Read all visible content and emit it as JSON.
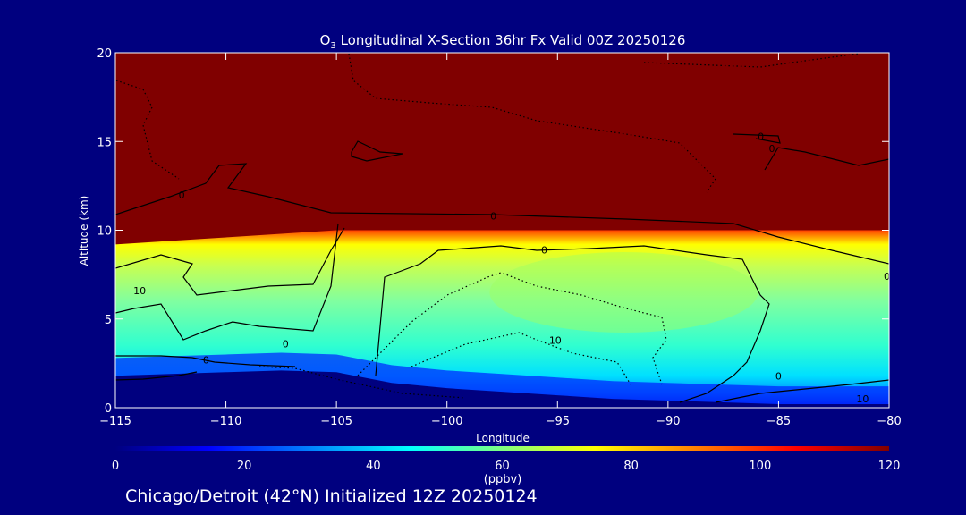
{
  "chart_data": {
    "type": "heatmap",
    "title_species": "O",
    "title_subscript": "3",
    "title_rest": " Longitudinal X-Section 36hr  Fx Valid 00Z 20250126",
    "xlabel": "Longitude",
    "ylabel": "Altitude (km)",
    "xlim": [
      -115,
      -80
    ],
    "ylim": [
      0,
      20
    ],
    "x_ticks": [
      -115,
      -110,
      -105,
      -100,
      -95,
      -90,
      -85,
      -80
    ],
    "x_tick_labels": [
      "−115",
      "−110",
      "−105",
      "−100",
      "−95",
      "−90",
      "−85",
      "−80"
    ],
    "y_ticks": [
      0,
      5,
      10,
      15,
      20
    ],
    "y_tick_labels": [
      "0",
      "5",
      "10",
      "15",
      "20"
    ],
    "colorbar": {
      "label": "(ppbv)",
      "range": [
        0,
        120
      ],
      "ticks": [
        0,
        20,
        40,
        60,
        80,
        100,
        120
      ],
      "tick_labels": [
        "0",
        "20",
        "40",
        "60",
        "80",
        "100",
        "120"
      ],
      "colors": [
        "#00007f",
        "#0000ff",
        "#0080ff",
        "#00ffff",
        "#80ff80",
        "#ffff00",
        "#ff8000",
        "#ff0000",
        "#800000"
      ]
    },
    "tropopause_altitude_km": [
      9.2,
      9.4,
      9.6,
      9.8,
      10.0,
      10.0,
      10.0,
      10.0,
      10.0,
      10.0,
      10.0,
      10.0,
      10.0,
      10.0,
      10.0
    ],
    "tropopause_longitude": [
      -115,
      -112.5,
      -110,
      -107.5,
      -105,
      -102.5,
      -100,
      -97.5,
      -95,
      -92.5,
      -90,
      -87.5,
      -85,
      -82.5,
      -80
    ],
    "stratosphere_ozone_ppbv": 120,
    "troposphere_ozone_ppbv_range": [
      40,
      60
    ],
    "surface_ozone_ppbv_range": [
      0,
      30
    ],
    "contour_labels": [
      {
        "text": "0",
        "lon": -112.0,
        "alt": 12.0
      },
      {
        "text": "0",
        "lon": -97.9,
        "alt": 10.8
      },
      {
        "text": "0",
        "lon": -85.8,
        "alt": 15.3
      },
      {
        "text": "0",
        "lon": -85.3,
        "alt": 14.6
      },
      {
        "text": "0",
        "lon": -95.6,
        "alt": 8.9
      },
      {
        "text": "10",
        "lon": -113.9,
        "alt": 6.6
      },
      {
        "text": "0",
        "lon": -107.3,
        "alt": 3.6
      },
      {
        "text": "0",
        "lon": -110.9,
        "alt": 2.7
      },
      {
        "text": "10",
        "lon": -95.1,
        "alt": 3.8
      },
      {
        "text": "0",
        "lon": -85.0,
        "alt": 1.8
      },
      {
        "text": "10",
        "lon": -81.2,
        "alt": 0.5
      },
      {
        "text": "0",
        "lon": -80.1,
        "alt": 7.4
      }
    ],
    "terrain_altitude_km": [
      1.8,
      1.9,
      2.0,
      2.1,
      2.0,
      1.4,
      1.1,
      0.9,
      0.7,
      0.5,
      0.4,
      0.3,
      0.2,
      0.2,
      0.2
    ],
    "terrain_longitude": [
      -115,
      -112.5,
      -110,
      -107.5,
      -105,
      -102.5,
      -100,
      -97.5,
      -95,
      -92.5,
      -90,
      -87.5,
      -85,
      -82.5,
      -80
    ]
  },
  "footer": {
    "caption": "Chicago/Detroit (42°N) Initialized 12Z 20250124"
  }
}
